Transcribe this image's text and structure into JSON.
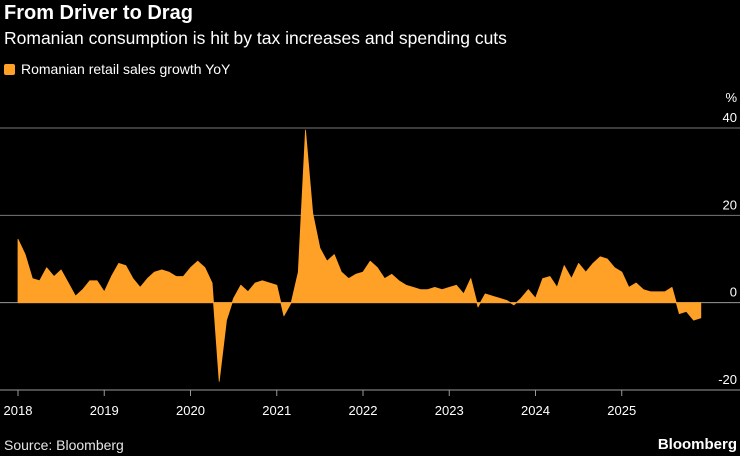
{
  "header": {
    "title": "From Driver to Drag",
    "subtitle": "Romanian consumption is hit by tax increases and spending cuts"
  },
  "legend": {
    "label": "Romanian retail sales growth YoY"
  },
  "footer": {
    "source": "Source: Bloomberg",
    "brand": "Bloomberg"
  },
  "colors": {
    "series": "#ffa126",
    "background": "#000000",
    "gridline": "#777777",
    "text": "#ffffff"
  },
  "chart_data": {
    "type": "area",
    "title": "From Driver to Drag",
    "subtitle": "Romanian consumption is hit by tax increases and spending cuts",
    "xlabel": "",
    "ylabel": "%",
    "ylim": [
      -20,
      40
    ],
    "xlim": [
      2018.0,
      2026.0
    ],
    "grid": true,
    "legend_position": "top-left",
    "x_ticks": [
      {
        "value": 2018,
        "label": "2018"
      },
      {
        "value": 2019,
        "label": "2019"
      },
      {
        "value": 2020,
        "label": "2020"
      },
      {
        "value": 2021,
        "label": "2021"
      },
      {
        "value": 2022,
        "label": "2022"
      },
      {
        "value": 2023,
        "label": "2023"
      },
      {
        "value": 2024,
        "label": "2024"
      },
      {
        "value": 2025,
        "label": "2025"
      }
    ],
    "y_ticks": [
      {
        "value": 40,
        "label": "40"
      },
      {
        "value": 20,
        "label": "20"
      },
      {
        "value": 0,
        "label": "0"
      },
      {
        "value": -20,
        "label": "-20"
      }
    ],
    "series": [
      {
        "name": "Romanian retail sales growth YoY",
        "x": [
          2018.0,
          2018.083,
          2018.167,
          2018.25,
          2018.333,
          2018.417,
          2018.5,
          2018.583,
          2018.667,
          2018.75,
          2018.833,
          2018.917,
          2019.0,
          2019.083,
          2019.167,
          2019.25,
          2019.333,
          2019.417,
          2019.5,
          2019.583,
          2019.667,
          2019.75,
          2019.833,
          2019.917,
          2020.0,
          2020.083,
          2020.167,
          2020.25,
          2020.333,
          2020.417,
          2020.5,
          2020.583,
          2020.667,
          2020.75,
          2020.833,
          2020.917,
          2021.0,
          2021.083,
          2021.167,
          2021.25,
          2021.333,
          2021.417,
          2021.5,
          2021.583,
          2021.667,
          2021.75,
          2021.833,
          2021.917,
          2022.0,
          2022.083,
          2022.167,
          2022.25,
          2022.333,
          2022.417,
          2022.5,
          2022.583,
          2022.667,
          2022.75,
          2022.833,
          2022.917,
          2023.0,
          2023.083,
          2023.167,
          2023.25,
          2023.333,
          2023.417,
          2023.5,
          2023.583,
          2023.667,
          2023.75,
          2023.833,
          2023.917,
          2024.0,
          2024.083,
          2024.167,
          2024.25,
          2024.333,
          2024.417,
          2024.5,
          2024.583,
          2024.667,
          2024.75,
          2024.833,
          2024.917,
          2025.0,
          2025.083,
          2025.167,
          2025.25,
          2025.333,
          2025.417,
          2025.5,
          2025.583,
          2025.667,
          2025.75,
          2025.833,
          2025.917
        ],
        "values": [
          14.5,
          11.0,
          5.5,
          5.0,
          8.0,
          6.0,
          7.5,
          4.5,
          1.5,
          3.0,
          5.0,
          5.0,
          2.5,
          6.0,
          9.0,
          8.5,
          5.5,
          3.5,
          5.5,
          7.0,
          7.5,
          7.0,
          6.0,
          6.0,
          8.0,
          9.5,
          8.0,
          4.5,
          -18.0,
          -4.0,
          1.0,
          4.0,
          2.5,
          4.5,
          5.0,
          4.5,
          4.0,
          -3.0,
          0.0,
          7.0,
          39.5,
          20.5,
          12.5,
          9.5,
          11.0,
          7.0,
          5.5,
          6.5,
          7.0,
          9.5,
          8.0,
          5.5,
          6.5,
          5.0,
          4.0,
          3.5,
          3.0,
          3.0,
          3.5,
          3.0,
          3.5,
          4.0,
          2.0,
          5.5,
          -1.0,
          2.0,
          1.5,
          1.0,
          0.5,
          -0.5,
          1.0,
          3.0,
          1.0,
          5.5,
          6.0,
          3.5,
          8.5,
          5.5,
          9.0,
          7.0,
          9.0,
          10.5,
          10.0,
          8.0,
          7.0,
          3.5,
          4.5,
          3.0,
          2.5,
          2.5,
          2.5,
          3.5,
          -2.5,
          -2.0,
          -4.0,
          -3.5
        ]
      }
    ]
  }
}
